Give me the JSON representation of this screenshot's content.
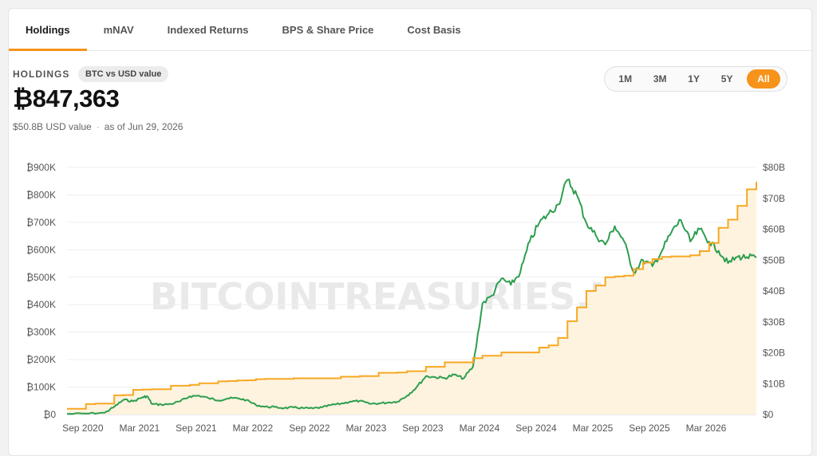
{
  "tabs": [
    {
      "label": "Holdings",
      "active": true
    },
    {
      "label": "mNAV",
      "active": false
    },
    {
      "label": "Indexed Returns",
      "active": false
    },
    {
      "label": "BPS & Share Price",
      "active": false
    },
    {
      "label": "Cost Basis",
      "active": false
    }
  ],
  "header": {
    "label": "HOLDINGS",
    "chip": "BTC vs USD value",
    "value": "₿847,363",
    "usd_value": "$50.8B USD value",
    "as_of": "as of Jun 29, 2026"
  },
  "ranges": [
    {
      "label": "1M",
      "active": false
    },
    {
      "label": "3M",
      "active": false
    },
    {
      "label": "1Y",
      "active": false
    },
    {
      "label": "5Y",
      "active": false
    },
    {
      "label": "All",
      "active": true
    }
  ],
  "watermark": "BITCOINTREASURIES.NET",
  "colors": {
    "btc": "#f7a823",
    "usd": "#2e9e4f",
    "area": "#fdf3df",
    "accent": "#f7931a"
  },
  "chart_data": {
    "type": "line",
    "x_start": "2020-08",
    "x_ticks": [
      "Sep 2020",
      "Mar 2021",
      "Sep 2021",
      "Mar 2022",
      "Sep 2022",
      "Mar 2023",
      "Sep 2023",
      "Mar 2024",
      "Sep 2024",
      "Mar 2025",
      "Sep 2025",
      "Mar 2026"
    ],
    "y_left_ticks": [
      "₿0",
      "₿100K",
      "₿200K",
      "₿300K",
      "₿400K",
      "₿500K",
      "₿600K",
      "₿700K",
      "₿800K",
      "₿900K"
    ],
    "y_right_ticks": [
      "$0",
      "$10B",
      "$20B",
      "$30B",
      "$40B",
      "$50B",
      "$60B",
      "$70B",
      "$80B"
    ],
    "y_left_range": [
      0,
      900000
    ],
    "y_right_range": [
      0,
      80
    ],
    "series": [
      {
        "axis": "left",
        "x": [
          0,
          1,
          2,
          3,
          4,
          5,
          6,
          7,
          8,
          9,
          10,
          11,
          12,
          13,
          14,
          15,
          16,
          17,
          18,
          19,
          20,
          21,
          22,
          23,
          24,
          25,
          26,
          27,
          28,
          29,
          30,
          31,
          32,
          33,
          34,
          35,
          36,
          37,
          38,
          39,
          40,
          41,
          42,
          43,
          44,
          45,
          46,
          47,
          48,
          49,
          50,
          51,
          52,
          53,
          54,
          55,
          56,
          57,
          58,
          59,
          60,
          61,
          62,
          63,
          64,
          65,
          66,
          67,
          68,
          69,
          70,
          71,
          72,
          73
        ],
        "values": [
          21000,
          21000,
          38000,
          40000,
          40000,
          70000,
          71000,
          90000,
          91000,
          92000,
          92000,
          105000,
          105000,
          108000,
          114000,
          114000,
          121000,
          122000,
          124000,
          125000,
          129000,
          130000,
          130000,
          130000,
          132000,
          132000,
          132000,
          132000,
          132000,
          138000,
          138000,
          140000,
          140000,
          152000,
          152000,
          153000,
          158000,
          158000,
          174000,
          174000,
          190000,
          190000,
          190000,
          205000,
          214000,
          214000,
          226000,
          226000,
          226000,
          226000,
          244000,
          252000,
          279000,
          340000,
          390000,
          450000,
          470000,
          500000,
          503000,
          506000,
          530000,
          553000,
          566000,
          574000,
          576000,
          576000,
          580000,
          595000,
          625000,
          680000,
          710000,
          760000,
          820000,
          847363
        ]
      },
      {
        "axis": "right",
        "x": [
          0,
          2,
          4,
          5,
          6,
          7,
          8,
          8.5,
          9,
          10,
          11,
          12,
          13,
          14,
          15,
          16,
          17,
          18,
          19,
          20,
          21,
          22,
          23,
          24,
          25,
          26,
          27,
          28,
          29,
          30,
          31,
          32,
          33,
          34,
          35,
          36,
          37,
          38,
          39,
          40,
          41,
          42,
          43,
          44,
          45,
          46,
          47,
          48,
          49,
          50,
          51,
          52,
          53,
          54,
          55,
          56,
          57,
          58,
          59,
          60,
          61,
          62,
          63,
          64,
          65,
          66,
          67,
          68,
          69,
          70,
          71,
          72,
          73
        ],
        "values": [
          0.2,
          0.3,
          0.6,
          2.5,
          4.8,
          4.3,
          5.6,
          5.9,
          3.4,
          3.2,
          3.4,
          4.3,
          5.9,
          6.1,
          5.3,
          4.6,
          5.2,
          5.3,
          4.7,
          3.1,
          2.5,
          2.4,
          2.1,
          2.3,
          2.1,
          2.0,
          2.3,
          3.1,
          3.5,
          4.2,
          4.4,
          3.5,
          3.6,
          3.9,
          4.2,
          6.1,
          8.8,
          12.4,
          12.1,
          11.8,
          12.9,
          11.7,
          15.5,
          36.0,
          38.5,
          44.0,
          42.0,
          46.0,
          56.0,
          62.0,
          65.0,
          68.0,
          76.0,
          71.0,
          62.0,
          58.0,
          55.0,
          61.0,
          56.0,
          46.0,
          50.0,
          48.0,
          53.0,
          59.0,
          63.0,
          56.0,
          60.0,
          56.0,
          53.0,
          49.0,
          51.0,
          51.0,
          50.8
        ]
      }
    ]
  }
}
